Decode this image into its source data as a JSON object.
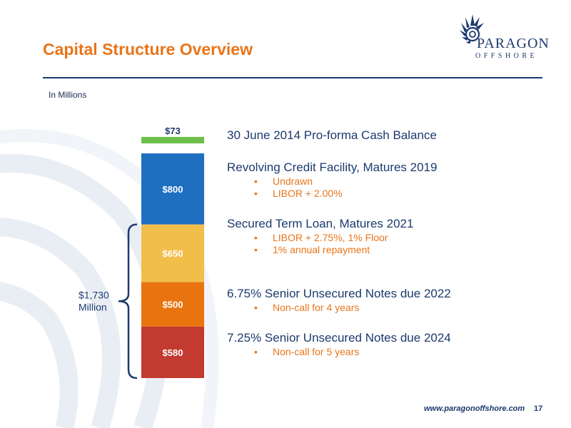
{
  "slide": {
    "title": "Capital Structure Overview",
    "units": "In Millions",
    "footer_url": "www.paragonoffshore.com",
    "page_number": "17"
  },
  "logo": {
    "name": "PARAGON",
    "subtitle": "OFFSHORE"
  },
  "colors": {
    "title": "#e8751a",
    "navy": "#1c3a6e",
    "bullet": "#e8751a",
    "cash": "#6cbf4a",
    "revolver": "#1f6fc1",
    "term_loan": "#f2be4a",
    "notes_2022": "#e8730f",
    "notes_2024": "#c23a30"
  },
  "chart_data": {
    "type": "bar",
    "subtype": "stacked-single-column",
    "unit": "In Millions",
    "segments": [
      {
        "key": "notes_2024",
        "value": 580,
        "label": "$580",
        "color": "#c23a30"
      },
      {
        "key": "notes_2022",
        "value": 500,
        "label": "$500",
        "color": "#e8730f"
      },
      {
        "key": "term_loan",
        "value": 650,
        "label": "$650",
        "color": "#f2be4a"
      },
      {
        "key": "revolver",
        "value": 800,
        "label": "$800",
        "color": "#1f6fc1"
      },
      {
        "key": "cash",
        "value": 73,
        "label": "$73",
        "color": "#6cbf4a"
      }
    ],
    "bracket": {
      "label_line1": "$1,730",
      "label_line2": "Million",
      "covers": [
        "notes_2024",
        "notes_2022",
        "term_loan"
      ]
    }
  },
  "legend": [
    {
      "key": "cash",
      "title": "30 June 2014 Pro-forma Cash Balance",
      "bullets": []
    },
    {
      "key": "revolver",
      "title": "Revolving Credit Facility, Matures 2019",
      "bullets": [
        "Undrawn",
        "LIBOR + 2.00%"
      ]
    },
    {
      "key": "term_loan",
      "title": "Secured Term Loan, Matures 2021",
      "bullets": [
        "LIBOR + 2.75%, 1% Floor",
        "1% annual repayment"
      ]
    },
    {
      "key": "notes_2022",
      "title": "6.75% Senior Unsecured Notes due 2022",
      "bullets": [
        "Non-call for 4 years"
      ]
    },
    {
      "key": "notes_2024",
      "title": "7.25% Senior Unsecured Notes due 2024",
      "bullets": [
        "Non-call for 5 years"
      ]
    }
  ]
}
